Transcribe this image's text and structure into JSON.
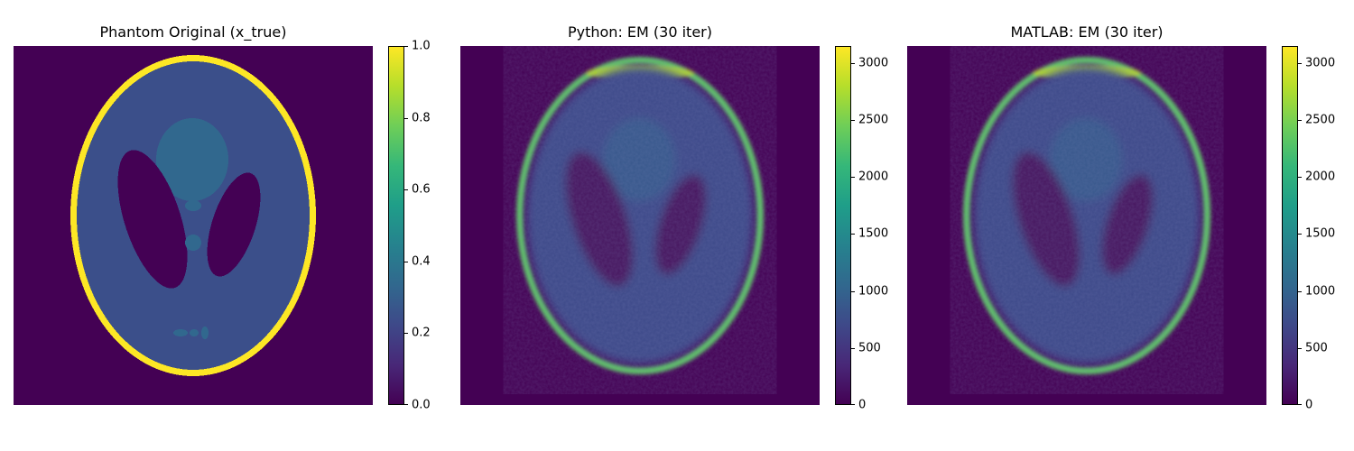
{
  "chart_data": [
    {
      "type": "heatmap",
      "title": "Phantom Original (x_true)",
      "colormap": "viridis",
      "colorbar": {
        "min": 0.0,
        "max": 1.0,
        "ticks": [
          "0.0",
          "0.2",
          "0.4",
          "0.6",
          "0.8",
          "1.0"
        ],
        "tick_values": [
          0,
          0.2,
          0.4,
          0.6,
          0.8,
          1.0
        ]
      },
      "content": "Shepp-Logan phantom: outer skull ring ~1.0, brain ~0.2, small features ~0.3, two ellipses ~0.0",
      "blur": false
    },
    {
      "type": "heatmap",
      "title": "Python: EM (30 iter)",
      "colormap": "viridis",
      "colorbar": {
        "min": 0,
        "max": 3150,
        "ticks": [
          "0",
          "500",
          "1000",
          "1500",
          "2000",
          "2500",
          "3000"
        ],
        "tick_values": [
          0,
          500,
          1000,
          1500,
          2000,
          2500,
          3000
        ]
      },
      "content": "EM reconstruction of phantom, ring ~2300-3000, brain ~500-700",
      "blur": true
    },
    {
      "type": "heatmap",
      "title": "MATLAB: EM (30 iter)",
      "colormap": "viridis",
      "colorbar": {
        "min": 0,
        "max": 3150,
        "ticks": [
          "0",
          "500",
          "1000",
          "1500",
          "2000",
          "2500",
          "3000"
        ],
        "tick_values": [
          0,
          500,
          1000,
          1500,
          2000,
          2500,
          3000
        ]
      },
      "content": "EM reconstruction of phantom, ring ~2300-3000, brain ~500-700",
      "blur": true
    }
  ],
  "colors": {
    "viridis_0": "#440154",
    "viridis_02": "#414487",
    "viridis_03": "#3b528b",
    "viridis_04": "#31688e",
    "viridis_06": "#21918c",
    "viridis_08": "#5ec962",
    "viridis_1": "#fde725"
  }
}
